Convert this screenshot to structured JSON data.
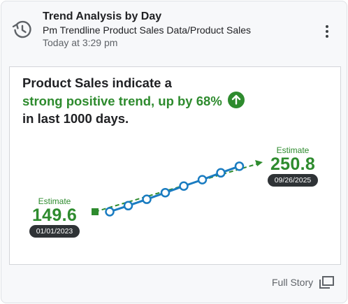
{
  "card": {
    "title": "Trend Analysis by Day",
    "subtitle": "Pm Trendline Product Sales Data/Product Sales",
    "timestamp": "Today at 3:29 pm",
    "icon": "history-clock-icon",
    "menu_icon": "more-vert-icon"
  },
  "insight": {
    "line1": "Product Sales indicate a",
    "line2": "strong positive trend, up by 68%",
    "line3": "in last 1000 days.",
    "trend_icon": "arrow-up-circle-icon"
  },
  "estimate_start": {
    "label": "Estimate",
    "value": "149.6",
    "date": "01/01/2023"
  },
  "estimate_end": {
    "label": "Estimate",
    "value": "250.8",
    "date": "09/26/2025"
  },
  "chart_data": {
    "type": "line",
    "series": [
      {
        "values": [
          149.6,
          162.0,
          175.0,
          188.5,
          202.0,
          215.0,
          229.0,
          242.5
        ]
      }
    ],
    "trendline": {
      "start": 149.6,
      "end": 250.8
    },
    "grid": false,
    "legend": "none"
  },
  "colors": {
    "accent_green": "#2e8b2e",
    "series_blue": "#1a7cc1",
    "pill_dark": "#2f3336"
  },
  "footer": {
    "full_story_label": "Full Story",
    "full_story_icon": "open-in-new-window-icon"
  }
}
